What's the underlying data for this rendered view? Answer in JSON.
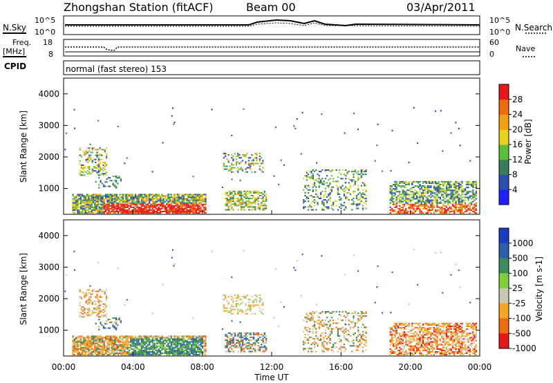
{
  "header": {
    "station": "Zhongshan Station (fitACF)",
    "beam": "Beam 00",
    "date": "03/Apr/2011"
  },
  "top_panels": {
    "nsky_label": "N.Sky",
    "nsearch_label": "N.Search",
    "nsky_ticks": [
      "10^5",
      "10^0"
    ],
    "freq_label": "Freq.",
    "freq_unit": "[MHz]",
    "freq_ticks": [
      "18",
      "8"
    ],
    "nave_label": "Nave",
    "nave_ticks": [
      "60",
      "0"
    ],
    "cpid_label": "CPID",
    "cpid_text": "normal (fast stereo) 153"
  },
  "colors": {
    "power": [
      "#1f1fff",
      "#2b4fb0",
      "#3a7d5a",
      "#5cbf3a",
      "#e8d21e",
      "#f2a013",
      "#ef6a10",
      "#e81818"
    ],
    "velocity": [
      "#e81818",
      "#ef6a10",
      "#f5a623",
      "#c8c8b4",
      "#7ecf3c",
      "#3f8a5a",
      "#2b5faa",
      "#1a3dbf"
    ],
    "ground_scatter": "#808080"
  },
  "chart_data": [
    {
      "type": "heatmap",
      "name": "power",
      "ylabel": "Slant Range [km]",
      "ylim": [
        180,
        4500
      ],
      "yticks": [
        "1000",
        "2000",
        "3000",
        "4000"
      ],
      "colorbar_label": "Power [dB]",
      "colorbar_ticks": [
        "4",
        "8",
        "12",
        "16",
        "20",
        "24",
        "28"
      ],
      "colorbar_range": [
        0,
        30
      ],
      "regions": [
        {
          "t0": 0.5,
          "t1": 8.2,
          "r0": 200,
          "r1": 800,
          "level": "mixed"
        },
        {
          "t0": 2.3,
          "t1": 8.0,
          "r0": 280,
          "r1": 480,
          "level": 28
        },
        {
          "t0": 0.9,
          "t1": 2.5,
          "r0": 1400,
          "r1": 2300,
          "level": "mixed"
        },
        {
          "t0": 9.2,
          "t1": 11.5,
          "r0": 1500,
          "r1": 2100,
          "level": "mixed"
        },
        {
          "t0": 9.3,
          "t1": 11.7,
          "r0": 300,
          "r1": 900,
          "level": "mixed"
        },
        {
          "t0": 13.8,
          "t1": 17.4,
          "r0": 300,
          "r1": 1600,
          "level": "mixed"
        },
        {
          "t0": 18.8,
          "t1": 23.8,
          "r0": 200,
          "r1": 1200,
          "level": "mixed"
        }
      ]
    },
    {
      "type": "heatmap",
      "name": "velocity",
      "ylabel": "Slant Range [km]",
      "ylim": [
        180,
        4500
      ],
      "yticks": [
        "1000",
        "2000",
        "3000",
        "4000"
      ],
      "colorbar_label": "Velocity [m s-1]",
      "colorbar_ticks": [
        "1000",
        "500",
        "100",
        "25",
        "-25",
        "-100",
        "-500",
        "-1000"
      ],
      "xlabel": "Time UT",
      "xticks": [
        "00:00",
        "04:00",
        "08:00",
        "12:00",
        "16:00",
        "20:00",
        "00:00"
      ],
      "xlim": [
        0,
        24
      ]
    }
  ]
}
